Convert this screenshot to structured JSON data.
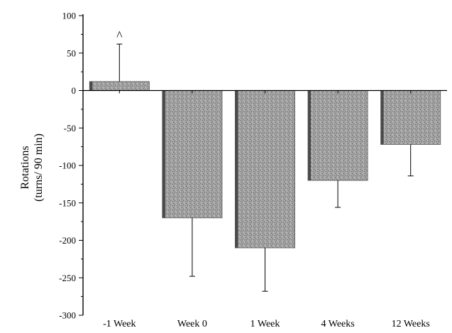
{
  "chart_data": {
    "type": "bar",
    "title": "",
    "xlabel": "",
    "ylabel_lines": [
      "Rotations",
      "(turns/ 90 min)"
    ],
    "categories": [
      "-1 Week",
      "Week 0",
      "1 Week",
      "4 Weeks",
      "12 Weeks"
    ],
    "values": [
      12,
      -170,
      -210,
      -120,
      -72
    ],
    "error_bars": [
      50,
      78,
      58,
      36,
      42
    ],
    "error_direction": [
      "up",
      "down",
      "down",
      "down",
      "down"
    ],
    "annotations": [
      {
        "category": "-1 Week",
        "text": "^"
      }
    ],
    "ylim": [
      -300,
      100
    ],
    "yticks": [
      100,
      50,
      0,
      -50,
      -100,
      -150,
      -200,
      -250,
      -300
    ],
    "grid": false,
    "bar_color": "#9a9a9a"
  }
}
